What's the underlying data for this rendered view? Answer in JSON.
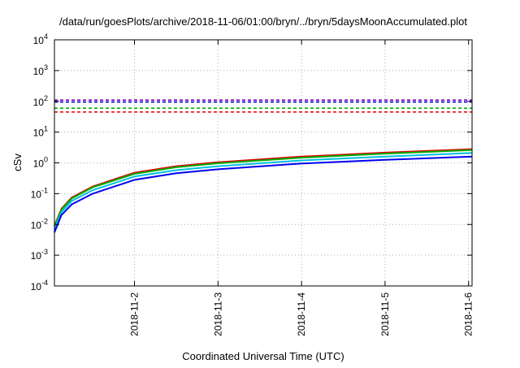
{
  "chart_data": {
    "type": "line",
    "title": "/data/run/goesPlots/archive/2018-11-06/01:00/bryn/../bryn/5daysMoonAccumulated.plot",
    "xlabel": "Coordinated Universal Time (UTC)",
    "ylabel": "cSv",
    "xlim": [
      "2018-11-01T01:00",
      "2018-11-06T01:00"
    ],
    "ylim": [
      0.0001,
      10000
    ],
    "yscale": "log",
    "grid": true,
    "x_ticks": [
      "2018-11-2",
      "2018-11-3",
      "2018-11-4",
      "2018-11-5",
      "2018-11-6"
    ],
    "y_ticks": [
      {
        "base": "10",
        "exp": "-4"
      },
      {
        "base": "10",
        "exp": "-3"
      },
      {
        "base": "10",
        "exp": "-2"
      },
      {
        "base": "10",
        "exp": "-1"
      },
      {
        "base": "10",
        "exp": "0"
      },
      {
        "base": "10",
        "exp": "1"
      },
      {
        "base": "10",
        "exp": "2"
      },
      {
        "base": "10",
        "exp": "3"
      },
      {
        "base": "10",
        "exp": "4"
      }
    ],
    "reference_lines": [
      {
        "y": 110,
        "color": "#8000c0",
        "style": "dashed"
      },
      {
        "y": 95,
        "color": "#0000cc",
        "style": "dashed"
      },
      {
        "y": 60,
        "color": "#00b000",
        "style": "dashed"
      },
      {
        "y": 45,
        "color": "#e00000",
        "style": "dashed"
      }
    ],
    "series": [
      {
        "color": "#e00000",
        "x": [
          "2018-11-01T01:00",
          "2018-11-01T03:00",
          "2018-11-01T06:00",
          "2018-11-01T12:00",
          "2018-11-02T00:00",
          "2018-11-02T12:00",
          "2018-11-03T00:00",
          "2018-11-04T00:00",
          "2018-11-05T00:00",
          "2018-11-06T01:00"
        ],
        "y": [
          0.009,
          0.032,
          0.075,
          0.17,
          0.48,
          0.78,
          1.05,
          1.6,
          2.15,
          2.8
        ]
      },
      {
        "color": "#00b000",
        "x": [
          "2018-11-01T01:00",
          "2018-11-01T03:00",
          "2018-11-01T06:00",
          "2018-11-01T12:00",
          "2018-11-02T00:00",
          "2018-11-02T12:00",
          "2018-11-03T00:00",
          "2018-11-04T00:00",
          "2018-11-05T00:00",
          "2018-11-06T01:00"
        ],
        "y": [
          0.0085,
          0.03,
          0.07,
          0.16,
          0.44,
          0.72,
          0.97,
          1.48,
          2.0,
          2.6
        ]
      },
      {
        "color": "#00c0e0",
        "x": [
          "2018-11-01T01:00",
          "2018-11-01T03:00",
          "2018-11-01T06:00",
          "2018-11-01T12:00",
          "2018-11-02T00:00",
          "2018-11-02T12:00",
          "2018-11-03T00:00",
          "2018-11-04T00:00",
          "2018-11-05T00:00",
          "2018-11-06T01:00"
        ],
        "y": [
          0.007,
          0.025,
          0.058,
          0.13,
          0.36,
          0.58,
          0.78,
          1.2,
          1.6,
          2.1
        ]
      },
      {
        "color": "#0000ee",
        "x": [
          "2018-11-01T01:00",
          "2018-11-01T03:00",
          "2018-11-01T06:00",
          "2018-11-01T12:00",
          "2018-11-02T00:00",
          "2018-11-02T12:00",
          "2018-11-03T00:00",
          "2018-11-04T00:00",
          "2018-11-05T00:00",
          "2018-11-06T01:00"
        ],
        "y": [
          0.0055,
          0.02,
          0.045,
          0.1,
          0.28,
          0.46,
          0.62,
          0.95,
          1.25,
          1.6
        ]
      }
    ]
  }
}
